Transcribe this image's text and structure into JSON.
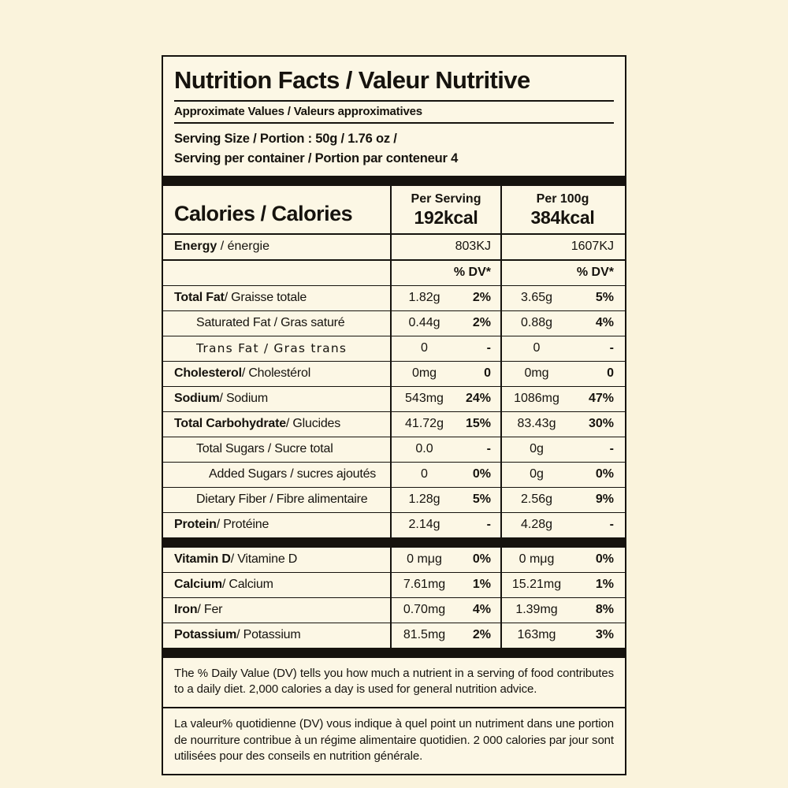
{
  "colors": {
    "page_bg": "#faf3dc",
    "label_bg": "#fcf7e5",
    "ink": "#16130e"
  },
  "label": {
    "title": "Nutrition Facts / Valeur Nutritive",
    "subtitle": "Approximate Values / Valeurs approximatives",
    "serving_size": "Serving Size / Portion : 50g / 1.76 oz /",
    "servings_per_container": "Serving per container / Portion par conteneur  4",
    "calories": {
      "label": "Calories / Calories",
      "per_serving_header": "Per Serving",
      "per_serving_value": "192kcal",
      "per_100g_header": "Per 100g",
      "per_100g_value": "384kcal"
    },
    "energy": {
      "bold": "Energy",
      "rest": " / énergie",
      "per_serving": "803KJ",
      "per_100g": "1607KJ"
    },
    "dv_header": "% DV*",
    "rows": [
      {
        "bold": "Total Fat",
        "rest": " / Graisse totale",
        "s_amt": "1.82g",
        "s_dv": "2%",
        "h_amt": "3.65g",
        "h_dv": "5%"
      },
      {
        "bold": "",
        "rest": "Saturated Fat / Gras saturé",
        "s_amt": "0.44g",
        "s_dv": "2%",
        "h_amt": "0.88g",
        "h_dv": "4%"
      },
      {
        "bold": "",
        "rest": "Trans Fat / Gras trans",
        "s_amt": "0",
        "s_dv": "-",
        "h_amt": "0",
        "h_dv": "-"
      },
      {
        "bold": "Cholesterol",
        "rest": " / Cholestérol",
        "s_amt": "0mg",
        "s_dv": "0",
        "h_amt": "0mg",
        "h_dv": "0"
      },
      {
        "bold": "Sodium",
        "rest": " / Sodium",
        "s_amt": "543mg",
        "s_dv": "24%",
        "h_amt": "1086mg",
        "h_dv": "47%"
      },
      {
        "bold": "Total Carbohydrate",
        "rest": " / Glucides",
        "s_amt": "41.72g",
        "s_dv": "15%",
        "h_amt": "83.43g",
        "h_dv": "30%"
      },
      {
        "bold": "",
        "rest": "Total Sugars / Sucre total",
        "s_amt": "0.0",
        "s_dv": "-",
        "h_amt": "0g",
        "h_dv": "-"
      },
      {
        "bold": "",
        "rest": "Added Sugars / sucres ajoutés",
        "s_amt": "0",
        "s_dv": "0%",
        "h_amt": "0g",
        "h_dv": "0%"
      },
      {
        "bold": "",
        "rest": "Dietary Fiber / Fibre alimentaire",
        "s_amt": "1.28g",
        "s_dv": "5%",
        "h_amt": "2.56g",
        "h_dv": "9%"
      },
      {
        "bold": "Protein",
        "rest": " / Protéine",
        "s_amt": "2.14g",
        "s_dv": "-",
        "h_amt": "4.28g",
        "h_dv": "-"
      }
    ],
    "micros": [
      {
        "bold": "Vitamin D",
        "rest": " / Vitamine D",
        "s_amt": "0 mμg",
        "s_dv": "0%",
        "h_amt": "0 mμg",
        "h_dv": "0%"
      },
      {
        "bold": "Calcium",
        "rest": " / Calcium",
        "s_amt": "7.61mg",
        "s_dv": "1%",
        "h_amt": "15.21mg",
        "h_dv": "1%"
      },
      {
        "bold": "Iron",
        "rest": " / Fer",
        "s_amt": "0.70mg",
        "s_dv": "4%",
        "h_amt": "1.39mg",
        "h_dv": "8%"
      },
      {
        "bold": "Potassium",
        "rest": " / Potassium",
        "s_amt": "81.5mg",
        "s_dv": "2%",
        "h_amt": "163mg",
        "h_dv": "3%"
      }
    ],
    "footnote_en": "The % Daily Value (DV) tells you how much a nutrient in a serving of food contributes to a daily diet. 2,000 calories a day is used for general nutrition advice.",
    "footnote_fr": "La valeur% quotidienne (DV) vous indique à quel point un nutriment dans une portion de nourriture contribue à un régime alimentaire quotidien. 2 000 calories par jour sont utilisées pour des conseils en nutrition générale."
  }
}
